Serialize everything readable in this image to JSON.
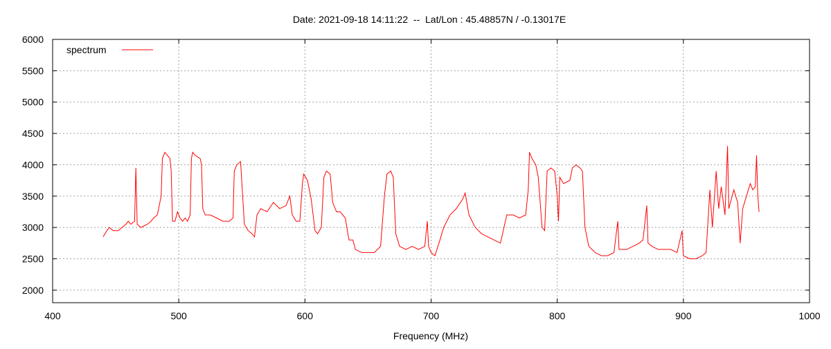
{
  "chart_data": {
    "type": "line",
    "title": "Date: 2021-09-18 14:11:22  --  Lat/Lon : 45.48857N / -0.13017E",
    "x_label": "Frequency (MHz)",
    "legend": "top-left",
    "grid": true,
    "xlim": [
      400,
      1000
    ],
    "xticks": [
      400,
      500,
      600,
      700,
      800,
      900,
      1000
    ],
    "ylim": [
      1800,
      6000
    ],
    "yticks": [
      2000,
      2500,
      3000,
      3500,
      4000,
      4500,
      5000,
      5500,
      6000
    ],
    "x": [
      440,
      443,
      445,
      448,
      452,
      455,
      458,
      460,
      462,
      465,
      466,
      467,
      470,
      475,
      478,
      480,
      483,
      486,
      487,
      489,
      491,
      493,
      494,
      495,
      497,
      499,
      501,
      503,
      505,
      507,
      509,
      510,
      511,
      513,
      517,
      518,
      519,
      521,
      525,
      530,
      535,
      540,
      543,
      544,
      546,
      549,
      550,
      552,
      555,
      558,
      560,
      562,
      565,
      570,
      575,
      580,
      585,
      588,
      590,
      593,
      596,
      598,
      599,
      602,
      605,
      608,
      610,
      613,
      615,
      617,
      620,
      622,
      625,
      628,
      632,
      634,
      635,
      638,
      640,
      645,
      650,
      655,
      660,
      663,
      665,
      668,
      670,
      672,
      675,
      680,
      685,
      690,
      695,
      697,
      698,
      700,
      703,
      707,
      710,
      715,
      720,
      725,
      727,
      730,
      735,
      740,
      745,
      750,
      755,
      760,
      765,
      770,
      775,
      777,
      778,
      780,
      783,
      785,
      788,
      790,
      792,
      795,
      798,
      800,
      801,
      802,
      805,
      810,
      812,
      815,
      818,
      820,
      822,
      825,
      830,
      835,
      840,
      845,
      848,
      849,
      855,
      860,
      865,
      868,
      871,
      872,
      875,
      880,
      885,
      890,
      895,
      899,
      900,
      905,
      910,
      915,
      918,
      921,
      923,
      926,
      928,
      930,
      933,
      935,
      936,
      940,
      943,
      945,
      947,
      950,
      953,
      955,
      957,
      958,
      959,
      960
    ],
    "series": [
      {
        "name": "spectrum",
        "color": "#ff0000",
        "values": [
          2850,
          2950,
          3000,
          2950,
          2950,
          3000,
          3050,
          3100,
          3050,
          3100,
          3950,
          3050,
          3000,
          3050,
          3100,
          3150,
          3200,
          3500,
          4100,
          4200,
          4150,
          4100,
          3900,
          3100,
          3100,
          3250,
          3150,
          3100,
          3150,
          3100,
          3200,
          4100,
          4200,
          4150,
          4100,
          4000,
          3300,
          3200,
          3200,
          3150,
          3100,
          3100,
          3150,
          3900,
          4000,
          4050,
          3700,
          3050,
          2950,
          2900,
          2850,
          3200,
          3300,
          3250,
          3400,
          3300,
          3350,
          3500,
          3200,
          3100,
          3100,
          3700,
          3850,
          3750,
          3450,
          2950,
          2900,
          3000,
          3800,
          3900,
          3850,
          3400,
          3250,
          3250,
          3150,
          2900,
          2800,
          2800,
          2650,
          2600,
          2600,
          2600,
          2700,
          3500,
          3850,
          3900,
          3800,
          2900,
          2700,
          2650,
          2700,
          2650,
          2700,
          3100,
          2700,
          2600,
          2550,
          2800,
          3000,
          3200,
          3300,
          3450,
          3550,
          3200,
          3000,
          2900,
          2850,
          2800,
          2750,
          3200,
          3200,
          3150,
          3200,
          3600,
          4200,
          4100,
          4000,
          3800,
          3000,
          2950,
          3900,
          3950,
          3900,
          3500,
          3100,
          3800,
          3700,
          3750,
          3950,
          4000,
          3950,
          3900,
          3000,
          2700,
          2600,
          2550,
          2550,
          2600,
          3100,
          2650,
          2650,
          2700,
          2750,
          2800,
          3350,
          2750,
          2700,
          2650,
          2650,
          2650,
          2600,
          2950,
          2550,
          2500,
          2500,
          2550,
          2600,
          3600,
          3000,
          3900,
          3300,
          3650,
          3200,
          4300,
          3300,
          3600,
          3400,
          2750,
          3300,
          3500,
          3700,
          3600,
          3650,
          4150,
          3500,
          3250
        ]
      }
    ]
  }
}
